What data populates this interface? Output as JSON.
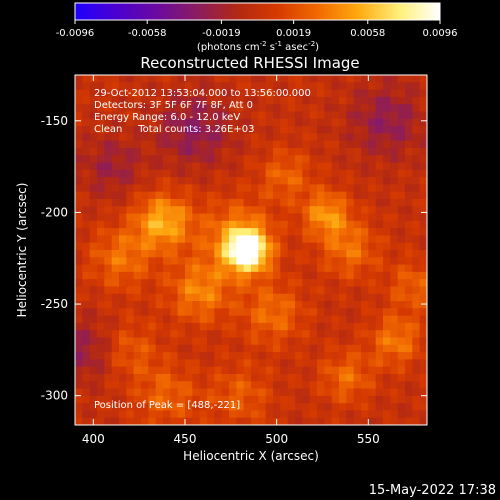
{
  "chart_data": {
    "type": "heatmap",
    "title": "Reconstructed RHESSI Image",
    "xlabel": "Heliocentric X (arcsec)",
    "ylabel": "Heliocentric Y (arcsec)",
    "xlim": [
      390,
      582
    ],
    "ylim": [
      -316,
      -125
    ],
    "xticks": [
      400,
      450,
      500,
      550
    ],
    "yticks": [
      -150,
      -200,
      -250,
      -300
    ],
    "annotations": [
      "29-Oct-2012 13:53:04.000 to 13:56:00.000",
      "Detectors: 3F 5F 6F 7F 8F, Att 0",
      "Energy Range: 6.0 - 12.0 keV",
      "Clean     Total counts: 3.26E+03"
    ],
    "peak_label": "Position of Peak = [488,-221]",
    "peak": {
      "x": 488,
      "y": -221
    },
    "colorbar": {
      "ticks": [
        "-0.0096",
        "-0.0058",
        "-0.0019",
        "0.0019",
        "0.0058",
        "0.0096"
      ],
      "min": -0.0096,
      "max": 0.0096,
      "unit_label": "(photons cm",
      "unit_sup1": "-2",
      "unit_mid": " s",
      "unit_sup2": "-1",
      "unit_end": " asec",
      "unit_sup3": "-2",
      "unit_close": ")",
      "colors": [
        "#1e00ff",
        "#4a00d0",
        "#6a0aa0",
        "#8a1c60",
        "#b22814",
        "#d63a00",
        "#f26a00",
        "#ffaa10",
        "#fff07a",
        "#ffffff"
      ]
    },
    "sources": [
      {
        "x": 484,
        "y": -221,
        "amp": 0.0096,
        "sigma": 8
      },
      {
        "x": 478,
        "y": -213,
        "amp": 0.0038,
        "sigma": 14
      },
      {
        "x": 438,
        "y": -205,
        "amp": 0.0055,
        "sigma": 11
      },
      {
        "x": 527,
        "y": -201,
        "amp": 0.0045,
        "sigma": 9
      },
      {
        "x": 458,
        "y": -243,
        "amp": 0.004,
        "sigma": 12
      },
      {
        "x": 415,
        "y": -225,
        "amp": 0.0033,
        "sigma": 12
      },
      {
        "x": 498,
        "y": -255,
        "amp": 0.0032,
        "sigma": 12
      },
      {
        "x": 540,
        "y": -220,
        "amp": 0.0033,
        "sigma": 11
      },
      {
        "x": 565,
        "y": -270,
        "amp": 0.0036,
        "sigma": 10
      },
      {
        "x": 538,
        "y": -290,
        "amp": 0.0031,
        "sigma": 10
      },
      {
        "x": 440,
        "y": -300,
        "amp": 0.0028,
        "sigma": 12
      },
      {
        "x": 480,
        "y": -300,
        "amp": 0.0025,
        "sigma": 12
      },
      {
        "x": 505,
        "y": -180,
        "amp": 0.0028,
        "sigma": 10
      },
      {
        "x": 575,
        "y": -240,
        "amp": 0.0027,
        "sigma": 10
      },
      {
        "x": 420,
        "y": -275,
        "amp": 0.0024,
        "sigma": 11
      }
    ],
    "negative_regions": [
      {
        "x": 455,
        "y": -155,
        "amp": 0.003,
        "sigma": 14
      },
      {
        "x": 560,
        "y": -150,
        "amp": 0.0028,
        "sigma": 14
      },
      {
        "x": 395,
        "y": -275,
        "amp": 0.0025,
        "sigma": 12
      },
      {
        "x": 410,
        "y": -175,
        "amp": 0.0022,
        "sigma": 12
      }
    ]
  },
  "footer": {
    "date": "15-May-2022 17:38"
  }
}
